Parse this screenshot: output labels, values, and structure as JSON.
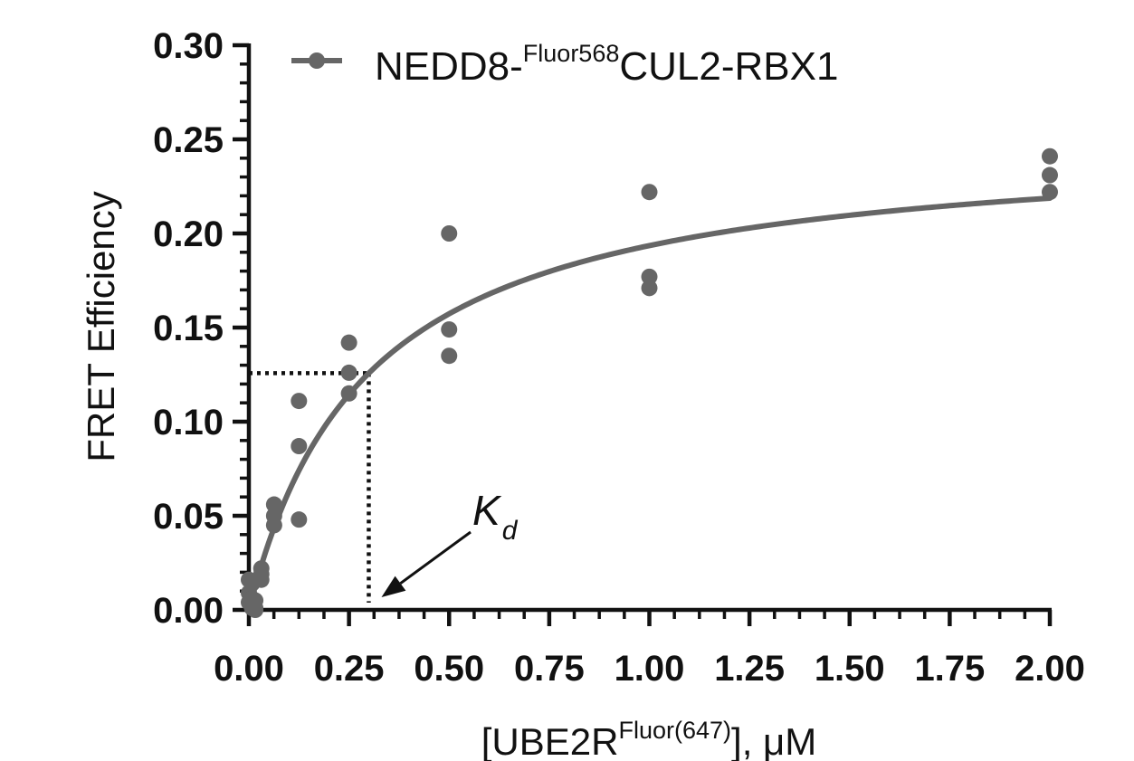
{
  "chart_data": {
    "type": "scatter",
    "xlabel": {
      "prefix": "[UBE2R",
      "superscript": "Fluor(647)",
      "suffix": "], μM"
    },
    "ylabel": "FRET Efficiency",
    "xlim": [
      0,
      2
    ],
    "ylim": [
      0,
      0.3
    ],
    "x_ticks": [
      0,
      0.25,
      0.5,
      0.75,
      1.0,
      1.25,
      1.5,
      1.75,
      2.0
    ],
    "x_tick_labels": [
      "0.00",
      "0.25",
      "0.50",
      "0.75",
      "1.00",
      "1.25",
      "1.50",
      "1.75",
      "2.00"
    ],
    "y_ticks": [
      0,
      0.05,
      0.1,
      0.15,
      0.2,
      0.25,
      0.3
    ],
    "y_tick_labels": [
      "0.00",
      "0.05",
      "0.10",
      "0.15",
      "0.20",
      "0.25",
      "0.30"
    ],
    "grid": false,
    "legend_position": "top-left",
    "series": [
      {
        "name": {
          "prefix": "NEDD8-",
          "superscript": "Fluor568",
          "suffix": "CUL2-RBX1"
        },
        "color": "#666666",
        "points": [
          {
            "x": 0.0,
            "y": 0.016
          },
          {
            "x": 0.0,
            "y": 0.009
          },
          {
            "x": 0.0,
            "y": 0.004
          },
          {
            "x": 0.008,
            "y": 0.014
          },
          {
            "x": 0.008,
            "y": 0.006
          },
          {
            "x": 0.008,
            "y": 0.001
          },
          {
            "x": 0.016,
            "y": 0.005
          },
          {
            "x": 0.016,
            "y": 0.001
          },
          {
            "x": 0.016,
            "y": 0.0
          },
          {
            "x": 0.031,
            "y": 0.022
          },
          {
            "x": 0.031,
            "y": 0.019
          },
          {
            "x": 0.031,
            "y": 0.016
          },
          {
            "x": 0.063,
            "y": 0.056
          },
          {
            "x": 0.063,
            "y": 0.05
          },
          {
            "x": 0.063,
            "y": 0.045
          },
          {
            "x": 0.125,
            "y": 0.111
          },
          {
            "x": 0.125,
            "y": 0.087
          },
          {
            "x": 0.125,
            "y": 0.048
          },
          {
            "x": 0.25,
            "y": 0.142
          },
          {
            "x": 0.25,
            "y": 0.126
          },
          {
            "x": 0.25,
            "y": 0.115
          },
          {
            "x": 0.5,
            "y": 0.2
          },
          {
            "x": 0.5,
            "y": 0.149
          },
          {
            "x": 0.5,
            "y": 0.135
          },
          {
            "x": 1.0,
            "y": 0.222
          },
          {
            "x": 1.0,
            "y": 0.177
          },
          {
            "x": 1.0,
            "y": 0.171
          },
          {
            "x": 2.0,
            "y": 0.241
          },
          {
            "x": 2.0,
            "y": 0.231
          },
          {
            "x": 2.0,
            "y": 0.222
          }
        ],
        "fit": {
          "model": "one-site binding",
          "bmax": 0.2515,
          "kd": 0.2994
        }
      }
    ],
    "annotation": {
      "label": "K",
      "subscript": "d",
      "x": 0.2994,
      "y": 0.1258
    }
  }
}
